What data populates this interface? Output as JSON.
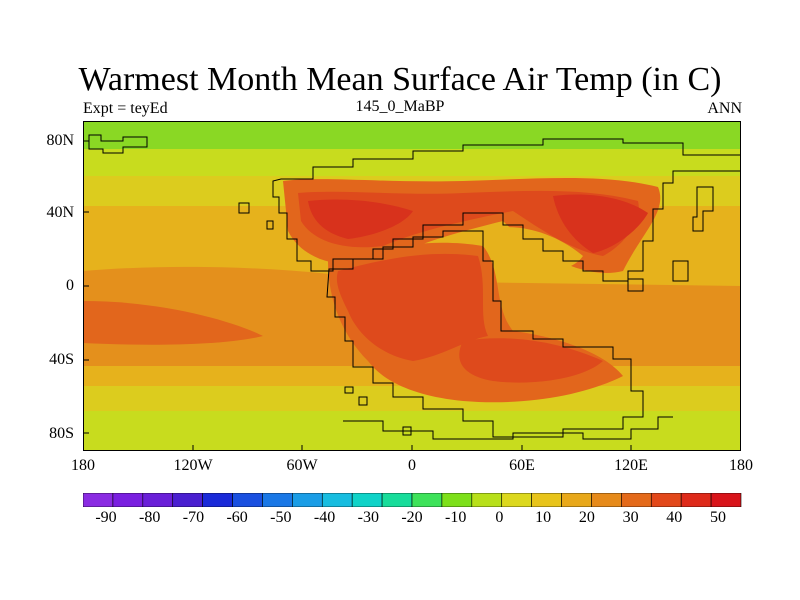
{
  "title": "Warmest Month Mean Surface Air Temp (in C)",
  "subtitle_left": "Expt = teyEd",
  "subtitle_center": "145_0_MaBP",
  "subtitle_right": "ANN",
  "y_ticks": [
    "80N",
    "40N",
    "0",
    "40S",
    "80S"
  ],
  "x_ticks": [
    "180",
    "120W",
    "60W",
    "0",
    "60E",
    "120E",
    "180"
  ],
  "colorbar_labels": [
    "-90",
    "-80",
    "-70",
    "-60",
    "-50",
    "-40",
    "-30",
    "-20",
    "-10",
    "0",
    "10",
    "20",
    "30",
    "40",
    "50"
  ],
  "colorbar_colors": [
    "#8a2be2",
    "#7a1fe0",
    "#6a1fd8",
    "#4a1fd0",
    "#1a2ad8",
    "#1a50e0",
    "#1a78e6",
    "#1a9de6",
    "#18bde0",
    "#10d3c8",
    "#18dc9a",
    "#3ee25a",
    "#7ee01a",
    "#b8e01a",
    "#dcd81e",
    "#e8c41a",
    "#e8a81a",
    "#e68a1a",
    "#e46a1a",
    "#e2481a",
    "#de2a1a",
    "#d8141a"
  ],
  "colors": {
    "arctic": "#8ad824",
    "cool": "#c8dc1e",
    "mild": "#dccc1e",
    "warm": "#e6b21c",
    "hot": "#e4901c",
    "veryhot": "#e2661c",
    "extreme": "#de4a1c",
    "max": "#d8321c"
  }
}
